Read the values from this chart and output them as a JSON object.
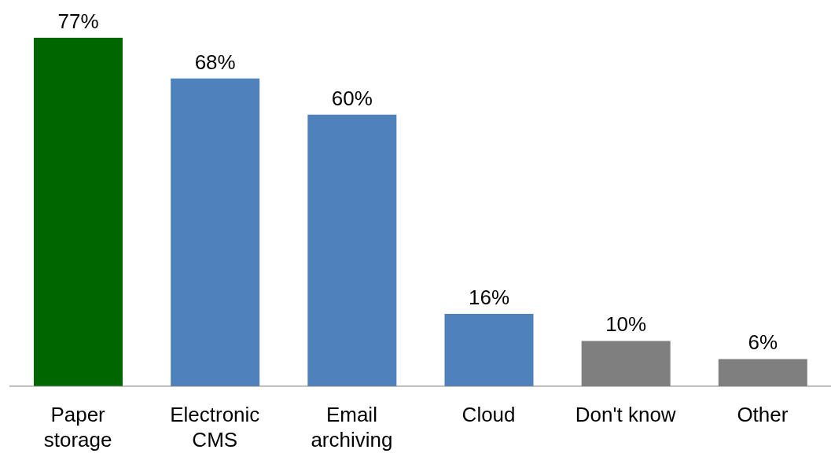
{
  "chart_data": {
    "type": "bar",
    "categories": [
      "Paper storage",
      "Electronic CMS",
      "Email archiving",
      "Cloud",
      "Don't know",
      "Other"
    ],
    "values": [
      77,
      68,
      60,
      16,
      10,
      6
    ],
    "colors": [
      "#006600",
      "#4f81bd",
      "#4f81bd",
      "#4f81bd",
      "#7f7f7f",
      "#7f7f7f"
    ],
    "value_labels": [
      "77%",
      "68%",
      "60%",
      "16%",
      "10%",
      "6%"
    ],
    "grid": false,
    "legend": false
  }
}
